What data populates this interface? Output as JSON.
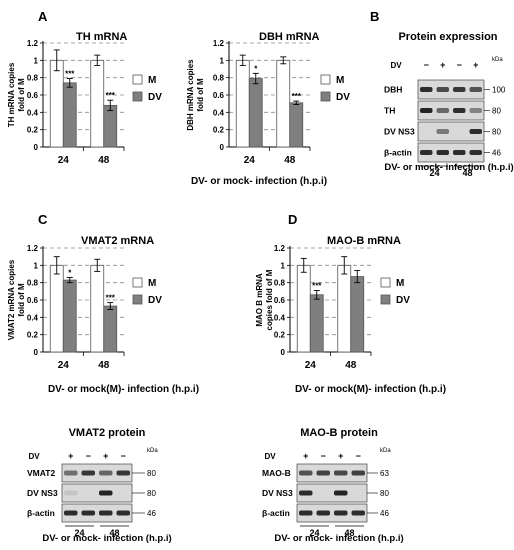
{
  "panel_letters": [
    "A",
    "B",
    "C",
    "D"
  ],
  "legend_labels": {
    "mock": "M",
    "dv": "DV"
  },
  "colors": {
    "mock": "#ffffff",
    "dv": "#7f7f7f",
    "blot_bg": "#d9d9d9",
    "band": "#1a1a1a"
  },
  "x_titles": {
    "panel_a": "DV- or mock- infection (h.p.i)",
    "panel_c": "DV- or mock(M)- infection (h.p.i)",
    "panel_d": "DV- or mock(M)- infection (h.p.i)",
    "vmat2_blot": "DV- or mock- infection (h.p.i)",
    "maob_blot": "DV- or mock- infection (h.p.i)"
  },
  "chart_data": [
    {
      "type": "bar",
      "id": "th",
      "title": "TH mRNA",
      "ylabel": "TH mRNA copies fold of M",
      "categories": [
        "24",
        "48"
      ],
      "ylim": [
        0,
        1.2
      ],
      "yticks": [
        "0",
        "0.2",
        "0.4",
        "0.6",
        "0.8",
        "1",
        "1.2"
      ],
      "series": [
        {
          "name": "M",
          "values": [
            1.0,
            1.0
          ],
          "errors": [
            0.12,
            0.06
          ]
        },
        {
          "name": "DV",
          "values": [
            0.74,
            0.48
          ],
          "errors": [
            0.05,
            0.06
          ]
        }
      ],
      "significance": [
        "***",
        "***"
      ],
      "grid": "dashed horizontal",
      "legend": "right"
    },
    {
      "type": "bar",
      "id": "dbh",
      "title": "DBH mRNA",
      "ylabel": "DBH mRNA copies fold of M",
      "categories": [
        "24",
        "48"
      ],
      "ylim": [
        0,
        1.2
      ],
      "yticks": [
        "0",
        "0.2",
        "0.4",
        "0.6",
        "0.8",
        "1",
        "1.2"
      ],
      "series": [
        {
          "name": "M",
          "values": [
            1.0,
            1.0
          ],
          "errors": [
            0.06,
            0.04
          ]
        },
        {
          "name": "DV",
          "values": [
            0.79,
            0.51
          ],
          "errors": [
            0.06,
            0.02
          ]
        }
      ],
      "significance": [
        "*",
        "***"
      ],
      "grid": "dashed horizontal",
      "legend": "right"
    },
    {
      "type": "bar",
      "id": "vmat2",
      "title": "VMAT2 mRNA",
      "ylabel": "VMAT2 mRNA copies fold of M",
      "categories": [
        "24",
        "48"
      ],
      "ylim": [
        0,
        1.2
      ],
      "yticks": [
        "0",
        "0.2",
        "0.4",
        "0.6",
        "0.8",
        "1",
        "1.2"
      ],
      "series": [
        {
          "name": "M",
          "values": [
            1.0,
            1.0
          ],
          "errors": [
            0.1,
            0.07
          ]
        },
        {
          "name": "DV",
          "values": [
            0.83,
            0.53
          ],
          "errors": [
            0.03,
            0.04
          ]
        }
      ],
      "significance": [
        "*",
        "***"
      ],
      "grid": "dashed horizontal",
      "legend": "right"
    },
    {
      "type": "bar",
      "id": "maob",
      "title": "MAO-B mRNA",
      "ylabel": "MAO B mRNA copies fold of M",
      "categories": [
        "24",
        "48"
      ],
      "ylim": [
        0,
        1.2
      ],
      "yticks": [
        "0",
        "0.2",
        "0.4",
        "0.6",
        "0.8",
        "1",
        "1.2"
      ],
      "series": [
        {
          "name": "M",
          "values": [
            1.0,
            1.0
          ],
          "errors": [
            0.08,
            0.1
          ]
        },
        {
          "name": "DV",
          "values": [
            0.66,
            0.87
          ],
          "errors": [
            0.05,
            0.07
          ]
        }
      ],
      "significance": [
        "***",
        ""
      ],
      "grid": "dashed horizontal",
      "legend": "right"
    }
  ],
  "blots": [
    {
      "id": "panel_b",
      "title": "Protein expression",
      "kda_label": "kDa",
      "lane_row_label": "DV",
      "lane_signs": [
        "−",
        "+",
        "−",
        "+"
      ],
      "timepoints": [
        "24",
        "48"
      ],
      "rows": [
        {
          "label": "DBH",
          "kda": "100",
          "band_levels": [
            0.9,
            0.75,
            0.85,
            0.7
          ]
        },
        {
          "label": "TH",
          "kda": "80",
          "band_levels": [
            0.95,
            0.6,
            0.9,
            0.45
          ]
        },
        {
          "label": "DV NS3",
          "kda": "80",
          "band_levels": [
            0.0,
            0.5,
            0.0,
            0.9
          ]
        },
        {
          "label": "β-actin",
          "kda": "46",
          "band_levels": [
            0.9,
            0.9,
            0.9,
            0.9
          ]
        }
      ]
    },
    {
      "id": "vmat2_blot",
      "title": "VMAT2 protein",
      "kda_label": "kDa",
      "lane_row_label": "DV",
      "lane_signs": [
        "+",
        "−",
        "+",
        "−"
      ],
      "timepoints": [
        "24",
        "48"
      ],
      "rows": [
        {
          "label": "VMAT2",
          "kda": "80",
          "band_levels": [
            0.55,
            0.85,
            0.6,
            0.85
          ]
        },
        {
          "label": "DV NS3",
          "kda": "80",
          "band_levels": [
            0.1,
            0.0,
            0.95,
            0.0
          ]
        },
        {
          "label": "β-actin",
          "kda": "46",
          "band_levels": [
            0.9,
            0.9,
            0.9,
            0.9
          ]
        }
      ]
    },
    {
      "id": "maob_blot",
      "title": "MAO-B protein",
      "kda_label": "kDa",
      "lane_row_label": "DV",
      "lane_signs": [
        "+",
        "−",
        "+",
        "−"
      ],
      "timepoints": [
        "24",
        "48"
      ],
      "rows": [
        {
          "label": "MAO-B",
          "kda": "63",
          "band_levels": [
            0.7,
            0.8,
            0.75,
            0.8
          ]
        },
        {
          "label": "DV NS3",
          "kda": "80",
          "band_levels": [
            0.9,
            0.0,
            0.95,
            0.0
          ]
        },
        {
          "label": "β-actin",
          "kda": "46",
          "band_levels": [
            0.9,
            0.9,
            0.9,
            0.9
          ]
        }
      ]
    }
  ]
}
